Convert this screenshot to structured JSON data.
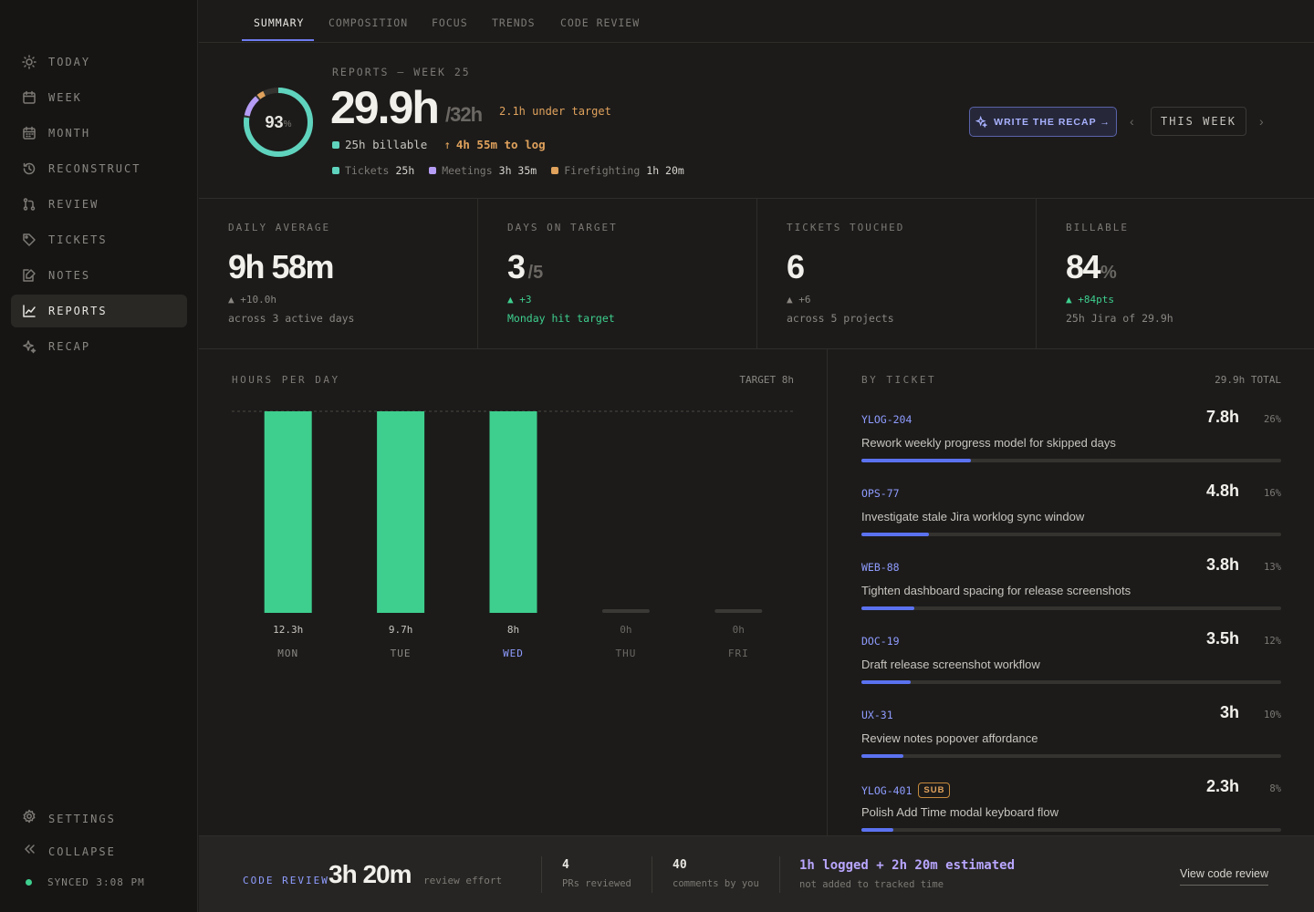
{
  "sidebar": {
    "items": [
      {
        "label": "TODAY",
        "icon": "sun-icon"
      },
      {
        "label": "WEEK",
        "icon": "calendar-icon"
      },
      {
        "label": "MONTH",
        "icon": "calendar-icon"
      },
      {
        "label": "RECONSTRUCT",
        "icon": "history-icon"
      },
      {
        "label": "REVIEW",
        "icon": "git-pull-request-icon"
      },
      {
        "label": "TICKETS",
        "icon": "tag-icon"
      },
      {
        "label": "NOTES",
        "icon": "notes-icon"
      },
      {
        "label": "REPORTS",
        "icon": "chart-line-icon",
        "active": true
      },
      {
        "label": "RECAP",
        "icon": "sparkles-icon"
      }
    ],
    "settings": "SETTINGS",
    "collapse": "COLLAPSE",
    "sync": "SYNCED 3:08 PM"
  },
  "tabs": [
    "SUMMARY",
    "COMPOSITION",
    "FOCUS",
    "TRENDS",
    "CODE REVIEW"
  ],
  "hero": {
    "label": "REPORTS — WEEK 25",
    "percent": "93",
    "percent_unit": "%",
    "hours": "29.9h",
    "target": "/32h",
    "under": "2.1h under target",
    "billable": "25h billable",
    "to_log": "4h 55m to log",
    "breakdown": [
      {
        "name": "Tickets",
        "value": "25h",
        "color": "#5fd3bd"
      },
      {
        "name": "Meetings",
        "value": "3h 35m",
        "color": "#b59cf5"
      },
      {
        "name": "Firefighting",
        "value": "1h 20m",
        "color": "#e0a25c"
      }
    ],
    "recap_button": "WRITE THE RECAP →",
    "week_button": "THIS WEEK"
  },
  "stats": [
    {
      "label": "DAILY AVERAGE",
      "value": "9h 58m",
      "unit": "",
      "delta": "▲ +10.0h",
      "delta_green": false,
      "note": "across 3 active days",
      "note_green": false
    },
    {
      "label": "DAYS ON TARGET",
      "value": "3",
      "unit": "/5",
      "delta": "▲ +3",
      "delta_green": true,
      "note": "Monday hit target",
      "note_green": true
    },
    {
      "label": "TICKETS TOUCHED",
      "value": "6",
      "unit": "",
      "delta": "▲ +6",
      "delta_green": false,
      "note": "across 5 projects",
      "note_green": false
    },
    {
      "label": "BILLABLE",
      "value": "84",
      "unit": "%",
      "delta": "▲ +84pts",
      "delta_green": true,
      "note": "25h Jira of 29.9h",
      "note_green": false
    }
  ],
  "chart_panel": {
    "title": "HOURS PER DAY",
    "target_label": "TARGET 8h"
  },
  "chart_data": {
    "type": "bar",
    "categories": [
      "MON",
      "TUE",
      "WED",
      "THU",
      "FRI"
    ],
    "values": [
      12.3,
      9.7,
      8,
      0,
      0
    ],
    "value_labels": [
      "12.3h",
      "9.7h",
      "8h",
      "0h",
      "0h"
    ],
    "target": 8,
    "highlight": "WED",
    "color": "#3ecf8e"
  },
  "ticket_panel": {
    "title": "BY TICKET",
    "total": "29.9h TOTAL",
    "tickets": [
      {
        "id": "YLOG-204",
        "title": "Rework weekly progress model for skipped days",
        "hours": "7.8h",
        "pct": "26%",
        "fraction": 0.26
      },
      {
        "id": "OPS-77",
        "title": "Investigate stale Jira worklog sync window",
        "hours": "4.8h",
        "pct": "16%",
        "fraction": 0.16
      },
      {
        "id": "WEB-88",
        "title": "Tighten dashboard spacing for release screenshots",
        "hours": "3.8h",
        "pct": "13%",
        "fraction": 0.127
      },
      {
        "id": "DOC-19",
        "title": "Draft release screenshot workflow",
        "hours": "3.5h",
        "pct": "12%",
        "fraction": 0.117
      },
      {
        "id": "UX-31",
        "title": "Review notes popover affordance",
        "hours": "3h",
        "pct": "10%",
        "fraction": 0.1
      },
      {
        "id": "YLOG-401",
        "badge": "SUB",
        "title": "Polish Add Time modal keyboard flow",
        "hours": "2.3h",
        "pct": "8%",
        "fraction": 0.077
      }
    ]
  },
  "footer": {
    "label": "CODE REVIEW",
    "effort": "3h 20m",
    "effort_sub": "review effort",
    "prs": "4",
    "prs_label": "PRs reviewed",
    "comments": "40",
    "comments_label": "comments by you",
    "logged": "1h logged + 2h 20m estimated",
    "logged_sub": "not added to tracked time",
    "link": "View code review"
  }
}
